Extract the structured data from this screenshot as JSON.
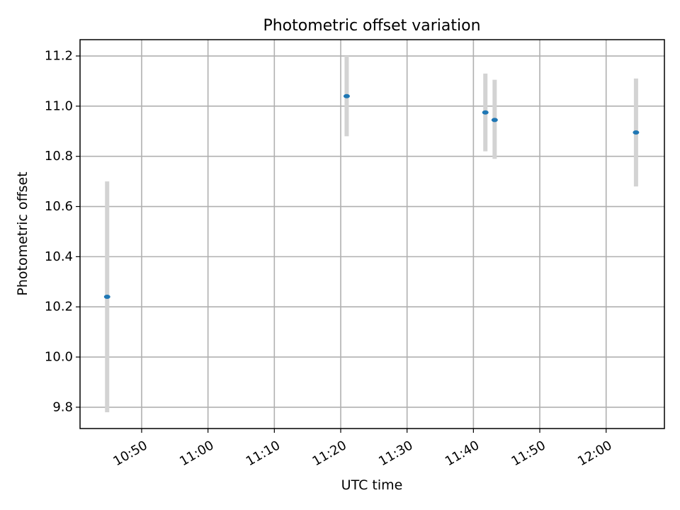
{
  "chart_data": {
    "type": "scatter",
    "title": "Photometric offset variation",
    "xlabel": "UTC time",
    "ylabel": "Photometric offset",
    "x_ticks": [
      "10:50",
      "11:00",
      "11:10",
      "11:20",
      "11:30",
      "11:40",
      "11:50",
      "12:00"
    ],
    "y_ticks": [
      "9.8",
      "10.0",
      "10.2",
      "10.4",
      "10.6",
      "10.8",
      "11.0",
      "11.2"
    ],
    "xlim": [
      "10:40:43",
      "12:08:47"
    ],
    "ylim": [
      9.715,
      11.265
    ],
    "grid": true,
    "colors": {
      "point": "#1f77b4",
      "errorbar": "#d3d3d3"
    },
    "points": [
      {
        "time": "10:44:48",
        "y": 10.24,
        "y_low": 9.78,
        "y_high": 10.7
      },
      {
        "time": "11:20:54",
        "y": 11.04,
        "y_low": 10.88,
        "y_high": 11.2
      },
      {
        "time": "11:41:48",
        "y": 10.975,
        "y_low": 10.82,
        "y_high": 11.13
      },
      {
        "time": "11:43:12",
        "y": 10.945,
        "y_low": 10.79,
        "y_high": 11.105
      },
      {
        "time": "12:04:30",
        "y": 10.895,
        "y_low": 10.68,
        "y_high": 11.11
      }
    ]
  }
}
